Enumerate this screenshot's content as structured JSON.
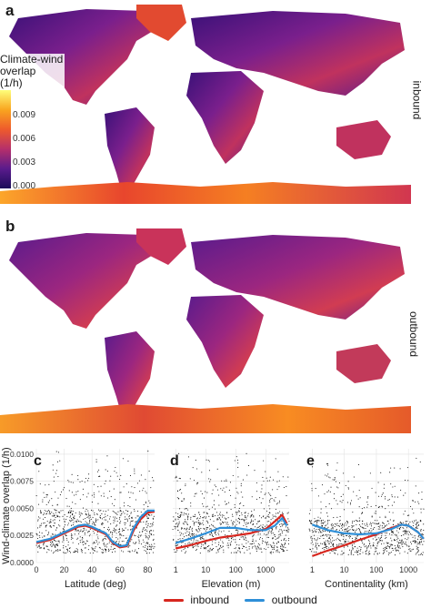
{
  "panels": {
    "a": "a",
    "b": "b",
    "c": "c",
    "d": "d",
    "e": "e"
  },
  "map_labels": {
    "top": "inbound",
    "bottom": "outbound"
  },
  "legend": {
    "title_lines": [
      "Climate-wind",
      "overlap",
      "(1/h)"
    ],
    "ticks": [
      "0.009",
      "0.006",
      "0.003",
      "0.000"
    ],
    "colormap": [
      "#1b0c5a",
      "#5a1b8c",
      "#b52f6b",
      "#ee5a2c",
      "#f9a51f",
      "#fefe7a"
    ]
  },
  "bottom_legend": {
    "inbound": "inbound",
    "outbound": "outbound",
    "inbound_color": "#d7261e",
    "outbound_color": "#2e8fd8"
  },
  "chart_data": [
    {
      "type": "scatter",
      "panel": "c",
      "xlabel": "Latitude (deg)",
      "ylabel": "Wind-climate overlap (1/h)",
      "xticks": [
        "0",
        "20",
        "40",
        "60",
        "80"
      ],
      "yticks": [
        "0.0000",
        "0.0025",
        "0.0050",
        "0.0075",
        "0.0100"
      ],
      "xlim": [
        0,
        85
      ],
      "ylim": [
        0,
        0.0105
      ],
      "series": [
        {
          "name": "inbound",
          "x": [
            0,
            10,
            20,
            30,
            35,
            40,
            50,
            55,
            60,
            65,
            70,
            75,
            80,
            85
          ],
          "y": [
            0.0018,
            0.0021,
            0.0027,
            0.0033,
            0.0034,
            0.0032,
            0.0026,
            0.0018,
            0.0014,
            0.0015,
            0.003,
            0.004,
            0.0046,
            0.0047
          ]
        },
        {
          "name": "outbound",
          "x": [
            0,
            10,
            20,
            30,
            35,
            40,
            50,
            55,
            60,
            65,
            70,
            75,
            80,
            85
          ],
          "y": [
            0.0019,
            0.0022,
            0.0028,
            0.0034,
            0.0035,
            0.0033,
            0.0027,
            0.0019,
            0.0015,
            0.0016,
            0.0032,
            0.0042,
            0.0048,
            0.0048
          ]
        }
      ]
    },
    {
      "type": "scatter",
      "panel": "d",
      "xlabel": "Elevation (m)",
      "xticks": [
        "1",
        "10",
        "100",
        "1000"
      ],
      "xlim": [
        0.8,
        6000
      ],
      "ylim": [
        0,
        0.0105
      ],
      "series": [
        {
          "name": "inbound",
          "x": [
            1,
            3,
            10,
            30,
            100,
            300,
            1000,
            2000,
            3500,
            5000
          ],
          "y": [
            0.0013,
            0.0016,
            0.002,
            0.0023,
            0.0025,
            0.0027,
            0.0031,
            0.0038,
            0.0044,
            0.0036
          ]
        },
        {
          "name": "outbound",
          "x": [
            1,
            3,
            10,
            30,
            100,
            300,
            1000,
            2000,
            3500,
            5000
          ],
          "y": [
            0.0018,
            0.0022,
            0.0027,
            0.0032,
            0.0032,
            0.003,
            0.003,
            0.0034,
            0.0041,
            0.0034
          ]
        }
      ]
    },
    {
      "type": "scatter",
      "panel": "e",
      "xlabel": "Continentality (km)",
      "xticks": [
        "1",
        "10",
        "100",
        "1000"
      ],
      "xlim": [
        0.8,
        3000
      ],
      "ylim": [
        0,
        0.0105
      ],
      "series": [
        {
          "name": "inbound",
          "x": [
            1,
            3,
            10,
            30,
            100,
            300,
            600,
            1000,
            2000,
            3000
          ],
          "y": [
            0.0006,
            0.0011,
            0.0016,
            0.0021,
            0.0026,
            0.0032,
            0.0035,
            0.0034,
            0.0028,
            0.0022
          ]
        },
        {
          "name": "outbound",
          "x": [
            1,
            3,
            10,
            30,
            100,
            300,
            600,
            1000,
            2000,
            3000
          ],
          "y": [
            0.0035,
            0.003,
            0.0027,
            0.0026,
            0.0027,
            0.0031,
            0.0035,
            0.0034,
            0.0028,
            0.0022
          ]
        }
      ]
    }
  ]
}
